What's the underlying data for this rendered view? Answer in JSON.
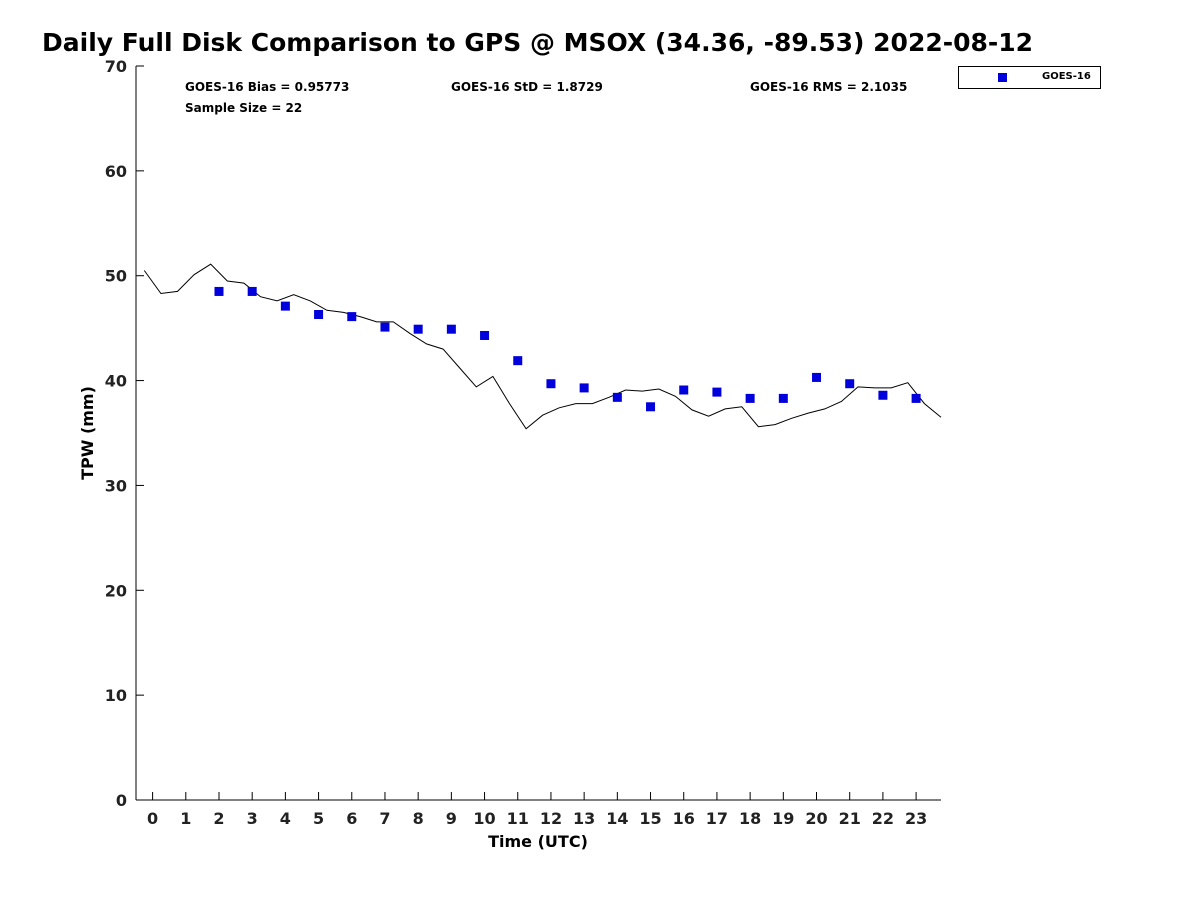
{
  "chart_data": {
    "type": "line",
    "title": "Daily Full Disk Comparison to GPS @ MSOX (34.36, -89.53) 2022-08-12",
    "xlabel": "Time (UTC)",
    "ylabel": "TPW (mm)",
    "xlim": [
      -0.5,
      23.75
    ],
    "ylim": [
      0,
      70
    ],
    "xticks": [
      0,
      1,
      2,
      3,
      4,
      5,
      6,
      7,
      8,
      9,
      10,
      11,
      12,
      13,
      14,
      15,
      16,
      17,
      18,
      19,
      20,
      21,
      22,
      23
    ],
    "yticks": [
      0,
      10,
      20,
      30,
      40,
      50,
      60,
      70
    ],
    "grid": false,
    "legend_position": "top-right outside",
    "stats": {
      "bias": "GOES-16 Bias = 0.95773",
      "std": "GOES-16 StD = 1.8729",
      "rms": "GOES-16 RMS = 2.1035",
      "sample": "Sample Size = 22"
    },
    "series": [
      {
        "style": "line",
        "color": "#000000",
        "x": [
          -0.25,
          0.25,
          0.75,
          1.25,
          1.75,
          2.25,
          2.75,
          3.25,
          3.75,
          4.25,
          4.75,
          5.25,
          5.75,
          6.25,
          6.75,
          7.25,
          7.75,
          8.25,
          8.75,
          9.25,
          9.75,
          10.25,
          10.75,
          11.25,
          11.75,
          12.25,
          12.75,
          13.25,
          13.75,
          14.25,
          14.75,
          15.25,
          15.75,
          16.25,
          16.75,
          17.25,
          17.75,
          18.25,
          18.75,
          19.25,
          19.75,
          20.25,
          20.75,
          21.25,
          21.75,
          22.25,
          22.75,
          23.25,
          23.75
        ],
        "y": [
          50.5,
          48.3,
          48.5,
          50.1,
          51.1,
          49.5,
          49.3,
          48.0,
          47.6,
          48.2,
          47.6,
          46.7,
          46.5,
          46.1,
          45.6,
          45.6,
          44.5,
          43.5,
          43.0,
          41.2,
          39.4,
          40.4,
          37.8,
          35.4,
          36.7,
          37.4,
          37.8,
          37.8,
          38.4,
          39.1,
          39.0,
          39.2,
          38.5,
          37.2,
          36.6,
          37.3,
          37.5,
          35.6,
          35.8,
          36.4,
          36.9,
          37.3,
          38.0,
          39.4,
          39.3,
          39.3,
          39.8,
          37.8,
          36.5
        ]
      },
      {
        "name": "GOES-16",
        "style": "square-marker",
        "color": "#0000dd",
        "x": [
          2,
          3,
          4,
          5,
          6,
          7,
          8,
          9,
          10,
          11,
          12,
          13,
          14,
          15,
          16,
          17,
          18,
          19,
          20,
          21,
          22,
          23
        ],
        "y": [
          48.5,
          48.5,
          47.1,
          46.3,
          46.1,
          45.1,
          44.9,
          44.9,
          44.3,
          41.9,
          39.7,
          39.3,
          38.4,
          37.5,
          39.1,
          38.9,
          38.3,
          38.3,
          40.3,
          39.7,
          38.6,
          38.3
        ]
      }
    ]
  }
}
